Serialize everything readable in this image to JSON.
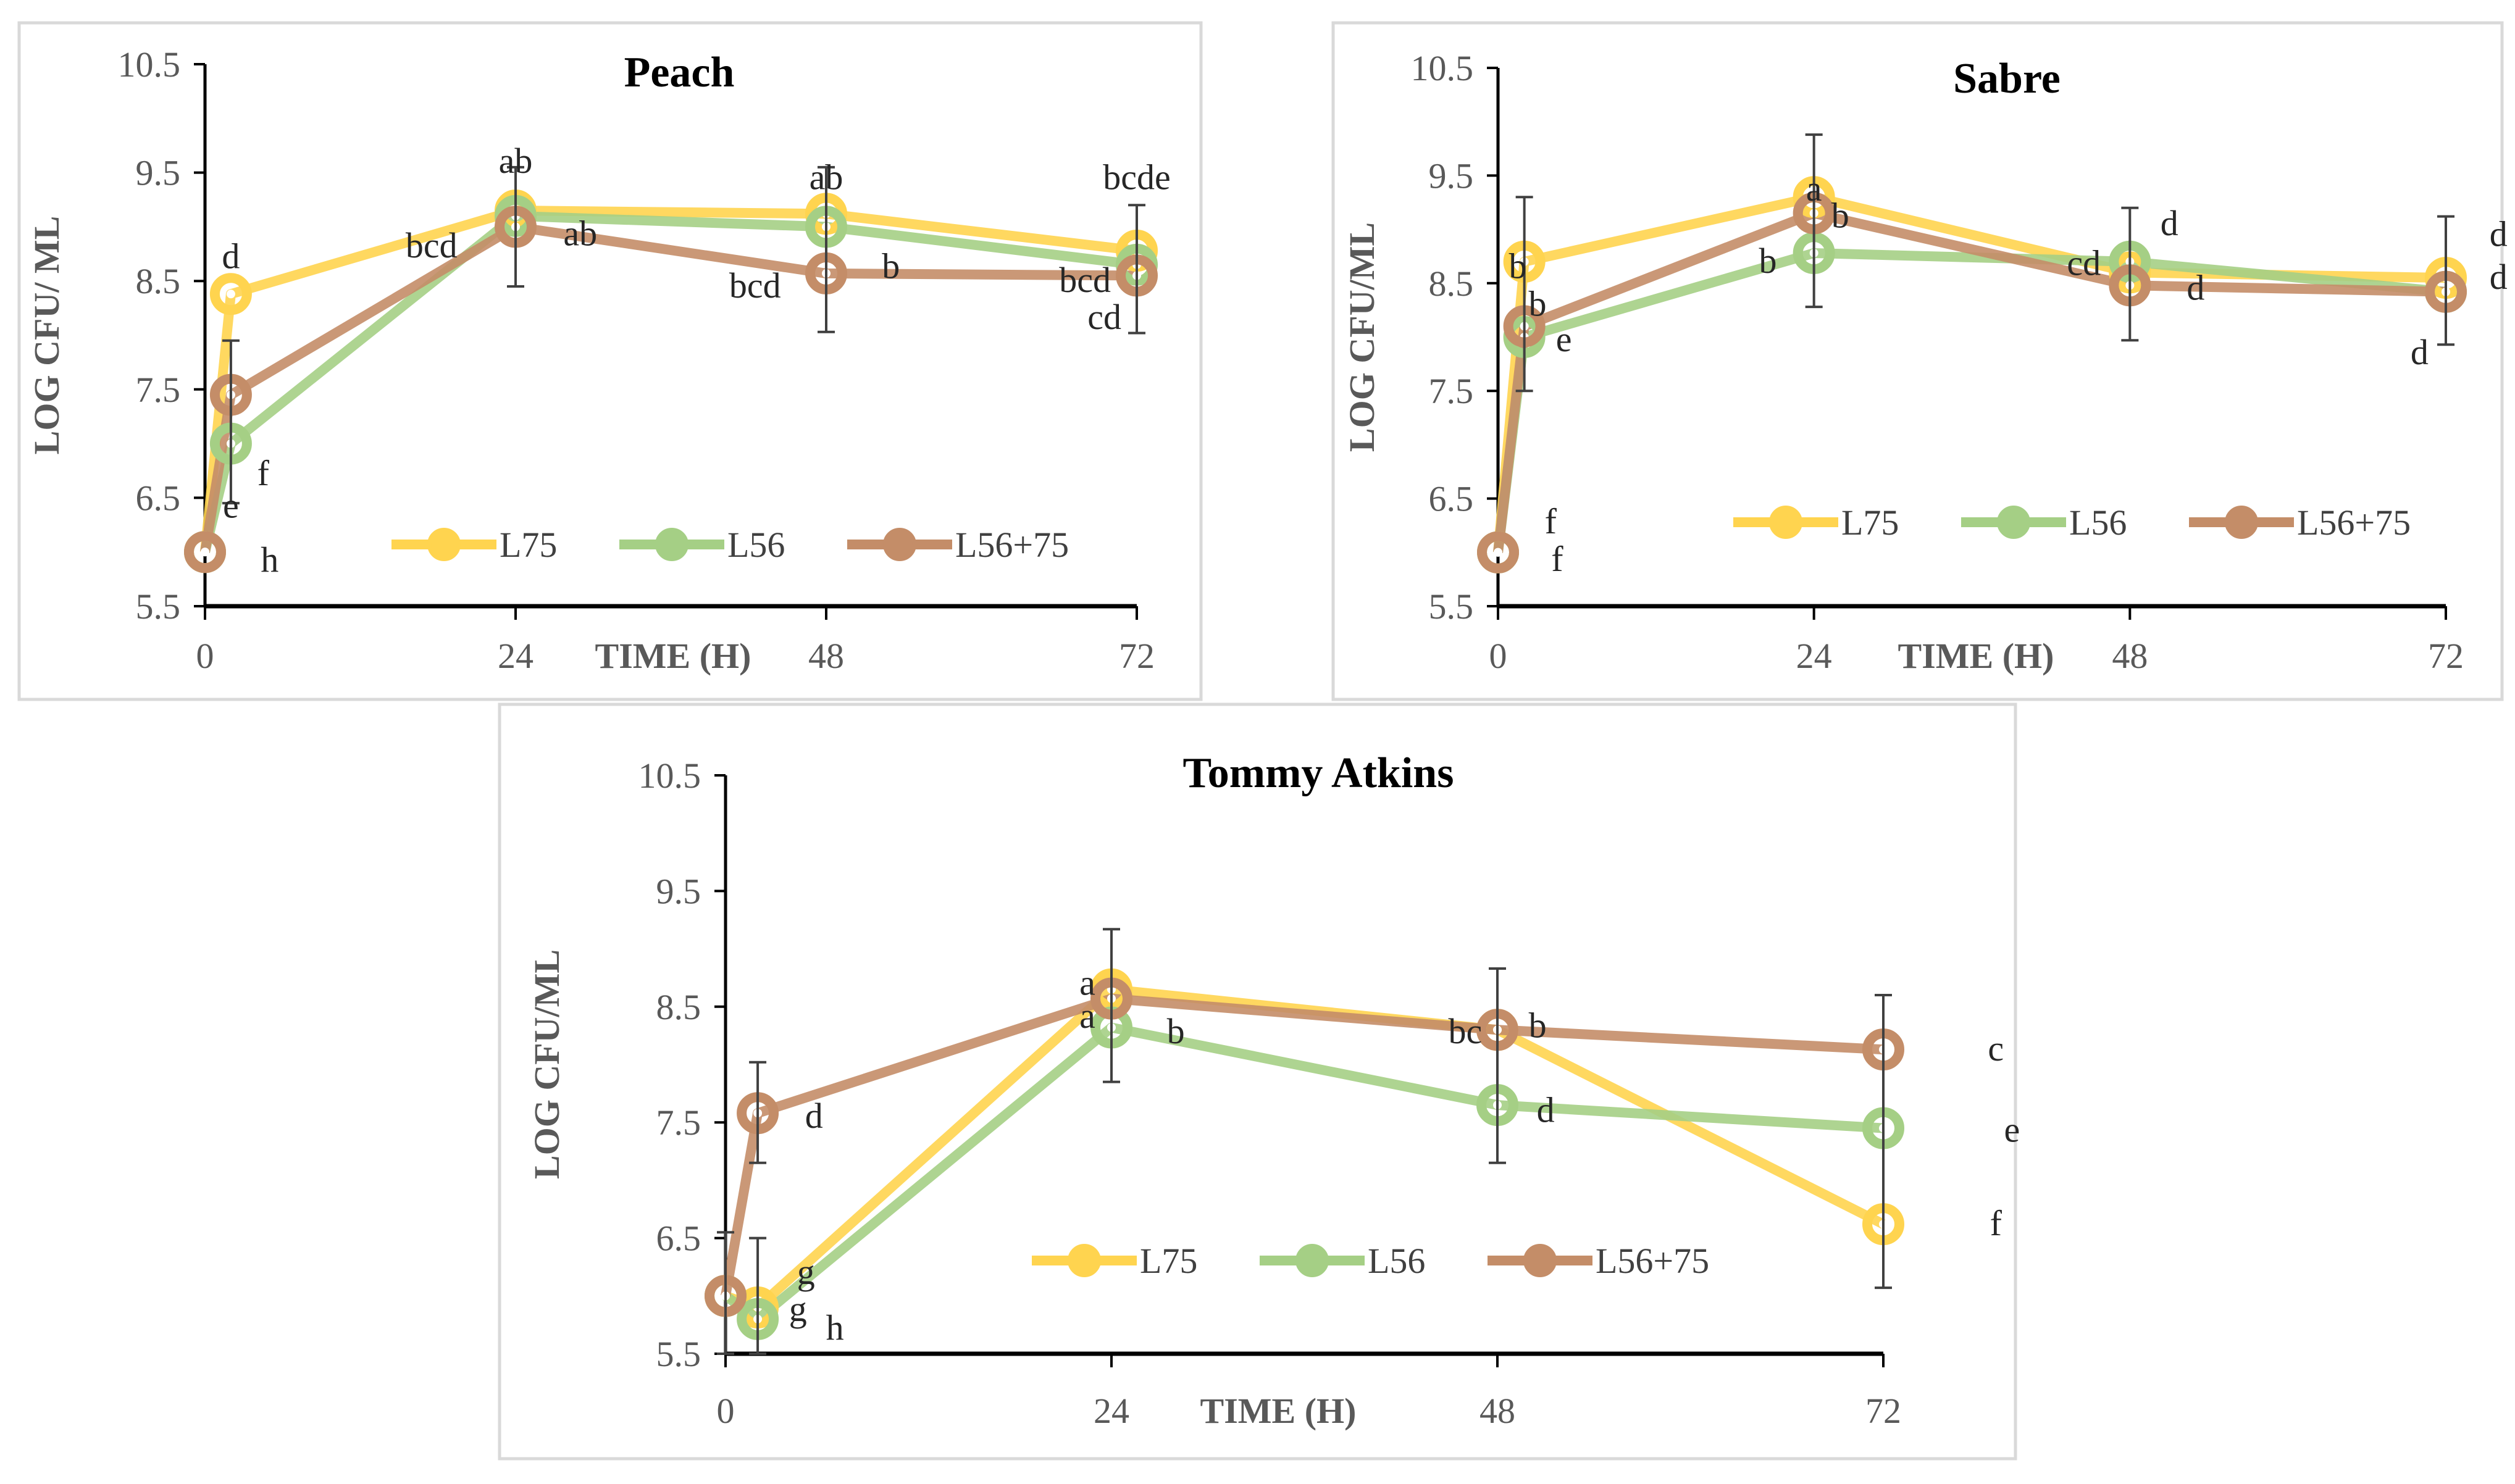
{
  "colors": {
    "L75": "#FFD44F",
    "L56": "#A5CF85",
    "L56+75": "#C48D68",
    "errorbar": "#404040"
  },
  "chart_data": [
    {
      "type": "line",
      "title": "Peach",
      "xlabel": "TIME (H)",
      "ylabel": "LOG CFU/ ML",
      "ylim": [
        5.5,
        10.5
      ],
      "yticks": [
        "5.5",
        "6.5",
        "7.5",
        "8.5",
        "9.5",
        "10.5"
      ],
      "xticks": [
        "0",
        "24",
        "48",
        "72"
      ],
      "legend": "bottom-center",
      "x": [
        0,
        2,
        24,
        48,
        72
      ],
      "series": [
        {
          "name": "L75",
          "values": [
            6.0,
            8.38,
            9.15,
            9.12,
            8.78
          ]
        },
        {
          "name": "L56",
          "values": [
            6.0,
            7.0,
            9.1,
            9.0,
            8.65
          ]
        },
        {
          "name": "L56+75",
          "values": [
            6.0,
            7.45,
            9.0,
            8.57,
            8.55
          ]
        }
      ],
      "error_bars": [
        {
          "x": 2,
          "low": 6.45,
          "high": 7.95
        },
        {
          "x": 24,
          "low": 8.45,
          "high": 9.55
        },
        {
          "x": 48,
          "low": 8.03,
          "high": 9.55
        },
        {
          "x": 72,
          "low": 8.02,
          "high": 9.2
        }
      ],
      "annotations": [
        {
          "text": "d",
          "x": 2,
          "y": 8.72
        },
        {
          "text": "e",
          "x": 2,
          "y": 6.42
        },
        {
          "text": "f",
          "x": 4.5,
          "y": 6.72
        },
        {
          "text": "h",
          "x": 5,
          "y": 5.92
        },
        {
          "text": "ab",
          "x": 24,
          "y": 9.6
        },
        {
          "text": "bcd",
          "x": 17.5,
          "y": 8.82
        },
        {
          "text": "ab",
          "x": 29,
          "y": 8.93
        },
        {
          "text": "ab",
          "x": 48,
          "y": 9.45
        },
        {
          "text": "b",
          "x": 53,
          "y": 8.63
        },
        {
          "text": "bcd",
          "x": 42.5,
          "y": 8.45
        },
        {
          "text": "bcde",
          "x": 72,
          "y": 9.45
        },
        {
          "text": "bcd",
          "x": 68,
          "y": 8.5
        },
        {
          "text": "cd",
          "x": 69.5,
          "y": 8.25
        }
      ]
    },
    {
      "type": "line",
      "title": "Sabre",
      "xlabel": "TIME (H)",
      "ylabel": "LOG CFU/ML",
      "ylim": [
        5.5,
        10.5
      ],
      "yticks": [
        "5.5",
        "6.5",
        "7.5",
        "8.5",
        "9.5",
        "10.5"
      ],
      "xticks": [
        "0",
        "24",
        "48",
        "72"
      ],
      "legend": "bottom-center",
      "x": [
        0,
        2,
        24,
        48,
        72
      ],
      "series": [
        {
          "name": "L75",
          "values": [
            6.0,
            8.7,
            9.3,
            8.6,
            8.55
          ]
        },
        {
          "name": "L56",
          "values": [
            6.0,
            8.0,
            8.78,
            8.7,
            8.42
          ]
        },
        {
          "name": "L56+75",
          "values": [
            6.0,
            8.1,
            9.15,
            8.48,
            8.42
          ]
        }
      ],
      "error_bars": [
        {
          "x": 2,
          "low": 7.5,
          "high": 9.3
        },
        {
          "x": 24,
          "low": 8.28,
          "high": 9.88
        },
        {
          "x": 48,
          "low": 7.97,
          "high": 9.2
        },
        {
          "x": 72,
          "low": 7.93,
          "high": 9.12
        }
      ],
      "annotations": [
        {
          "text": "f",
          "x": 4,
          "y": 6.28
        },
        {
          "text": "f",
          "x": 4.5,
          "y": 5.93
        },
        {
          "text": "b",
          "x": 1.5,
          "y": 8.65
        },
        {
          "text": "b",
          "x": 3,
          "y": 8.3
        },
        {
          "text": "e",
          "x": 5,
          "y": 7.97
        },
        {
          "text": "a",
          "x": 24,
          "y": 9.37
        },
        {
          "text": "b",
          "x": 26,
          "y": 9.12
        },
        {
          "text": "b",
          "x": 20.5,
          "y": 8.7
        },
        {
          "text": "cd",
          "x": 44.5,
          "y": 8.68
        },
        {
          "text": "d",
          "x": 51,
          "y": 9.05
        },
        {
          "text": "d",
          "x": 53,
          "y": 8.45
        },
        {
          "text": "d",
          "x": 76,
          "y": 8.95
        },
        {
          "text": "d",
          "x": 76,
          "y": 8.55
        },
        {
          "text": "d",
          "x": 70,
          "y": 7.85
        }
      ]
    },
    {
      "type": "line",
      "title": "Tommy Atkins",
      "xlabel": "TIME (H)",
      "ylabel": "LOG CFU/ML",
      "ylim": [
        5.5,
        10.5
      ],
      "yticks": [
        "5.5",
        "6.5",
        "7.5",
        "8.5",
        "9.5",
        "10.5"
      ],
      "xticks": [
        "0",
        "24",
        "48",
        "72"
      ],
      "legend": "bottom-center",
      "x": [
        0,
        2,
        24,
        48,
        72
      ],
      "series": [
        {
          "name": "L75",
          "values": [
            6.0,
            5.9,
            8.65,
            8.3,
            6.62
          ]
        },
        {
          "name": "L56",
          "values": [
            6.0,
            5.8,
            8.32,
            7.65,
            7.45
          ]
        },
        {
          "name": "L56+75",
          "values": [
            6.0,
            7.58,
            8.57,
            8.3,
            8.13
          ]
        }
      ],
      "error_bars": [
        {
          "x": 0,
          "low": 5.5,
          "high": 6.55
        },
        {
          "x": 2,
          "low": 5.5,
          "high": 6.5
        },
        {
          "x": 2,
          "low": 7.15,
          "high": 8.02
        },
        {
          "x": 24,
          "low": 7.85,
          "high": 9.17
        },
        {
          "x": 48,
          "low": 7.15,
          "high": 8.83
        },
        {
          "x": 72,
          "low": 6.07,
          "high": 8.6
        }
      ],
      "annotations": [
        {
          "text": "d",
          "x": 5.5,
          "y": 7.55
        },
        {
          "text": "g",
          "x": 5,
          "y": 6.2
        },
        {
          "text": "g",
          "x": 4.5,
          "y": 5.88
        },
        {
          "text": "h",
          "x": 6.8,
          "y": 5.72
        },
        {
          "text": "a",
          "x": 22.5,
          "y": 8.7
        },
        {
          "text": "a",
          "x": 22.5,
          "y": 8.5
        },
        {
          "text": "b",
          "x": 28,
          "y": 8.28
        },
        {
          "text": "bc",
          "x": 46,
          "y": 8.28
        },
        {
          "text": "b",
          "x": 50.5,
          "y": 8.33
        },
        {
          "text": "d",
          "x": 51,
          "y": 7.6
        },
        {
          "text": "c",
          "x": 79,
          "y": 8.13
        },
        {
          "text": "e",
          "x": 80,
          "y": 7.43
        },
        {
          "text": "f",
          "x": 79,
          "y": 6.62
        }
      ]
    }
  ]
}
